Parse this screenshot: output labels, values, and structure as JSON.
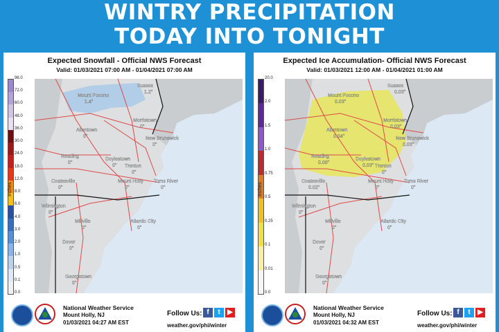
{
  "banner": {
    "line1": "WINTRY PRECIPITATION",
    "line2": "TODAY INTO TONIGHT"
  },
  "panels": [
    {
      "title": "Expected Snowfall - Official NWS Forecast",
      "valid": "Valid: 01/03/2021 07:00 AM - 01/04/2021 07:00 AM",
      "legend_unit": "Inches",
      "legend_ticks": [
        "96.0",
        "72.0",
        "60.0",
        "48.0",
        "36.0",
        "30.0",
        "24.0",
        "18.0",
        "12.0",
        "8.0",
        "6.0",
        "4.0",
        "3.0",
        "2.0",
        "1.0",
        "0.5",
        "0.1",
        "0.0"
      ],
      "legend_colors": [
        "#9a88c8",
        "#b3a3d6",
        "#cfc3e6",
        "#e8e0f2",
        "#6b1010",
        "#9a1818",
        "#c02020",
        "#e03a1a",
        "#f08a1a",
        "#f0c020",
        "#2a4fa0",
        "#3a6dc0",
        "#5a8fd8",
        "#8ab4e6",
        "#b8d3f0",
        "#dde9f7",
        "#f0f0f0"
      ],
      "places": [
        {
          "name": "Mount Pocono",
          "value": "1.4\""
        },
        {
          "name": "Sussex",
          "value": "1.2\""
        },
        {
          "name": "Morristown",
          "value": "0\""
        },
        {
          "name": "Allentown",
          "value": "0\""
        },
        {
          "name": "New Brunswick",
          "value": "0\""
        },
        {
          "name": "Reading",
          "value": "0\""
        },
        {
          "name": "Doylestown",
          "value": "0\""
        },
        {
          "name": "Trenton",
          "value": "0\""
        },
        {
          "name": "Coatesville",
          "value": "0\""
        },
        {
          "name": "Mount Holly",
          "value": "0\""
        },
        {
          "name": "Toms River",
          "value": "0\""
        },
        {
          "name": "Wilmington",
          "value": "0\""
        },
        {
          "name": "Millville",
          "value": "0\""
        },
        {
          "name": "Atlantic City",
          "value": "0\""
        },
        {
          "name": "Dover",
          "value": "0\""
        },
        {
          "name": "Georgetown",
          "value": "0\""
        }
      ],
      "footer": {
        "org": "National Weather Service",
        "office": "Mount Holly, NJ",
        "issued": "01/03/2021 04:27 AM EST",
        "follow": "Follow Us:",
        "url": "weather.gov/phi/winter"
      }
    },
    {
      "title": "Expected Ice Accumulation- Official NWS Forecast",
      "valid": "Valid: 01/03/2021 12:00 AM - 01/04/2021 01:00 AM",
      "legend_unit": "Inches",
      "legend_ticks": [
        "20.0",
        "2.0",
        "1.5",
        "1.0",
        "0.75",
        "0.5",
        "0.25",
        "0.1",
        "0.01",
        "0.0"
      ],
      "legend_colors": [
        "#3a1a6a",
        "#5a2a9a",
        "#8a5ac8",
        "#c02a2a",
        "#e07a1a",
        "#f0c020",
        "#f0e040",
        "#f7f0a0",
        "#f5f5f5"
      ],
      "places": [
        {
          "name": "Mount Pocono",
          "value": "0.03\""
        },
        {
          "name": "Sussex",
          "value": "0.03\""
        },
        {
          "name": "Morristown",
          "value": "0.03\""
        },
        {
          "name": "Allentown",
          "value": "0.04\""
        },
        {
          "name": "New Brunswick",
          "value": "0.03\""
        },
        {
          "name": "Reading",
          "value": "0.08\""
        },
        {
          "name": "Doylestown",
          "value": "0.03\""
        },
        {
          "name": "Trenton",
          "value": "0\""
        },
        {
          "name": "Coatesville",
          "value": "0.02\""
        },
        {
          "name": "Mount Holly",
          "value": "0\""
        },
        {
          "name": "Toms River",
          "value": "0\""
        },
        {
          "name": "Wilmington",
          "value": "0\""
        },
        {
          "name": "Millville",
          "value": "0\""
        },
        {
          "name": "Atlantic City",
          "value": "0\""
        },
        {
          "name": "Dover",
          "value": "0\""
        },
        {
          "name": "Georgetown",
          "value": "0\""
        }
      ],
      "footer": {
        "org": "National Weather Service",
        "office": "Mount Holly, NJ",
        "issued": "01/03/2021 04:32 AM EST",
        "follow": "Follow Us:",
        "url": "weather.gov/phi/winter"
      }
    }
  ],
  "map_colors": {
    "water": "#dce9f5",
    "land_out": "#c9cdd0",
    "land_in": "#dedfe0",
    "road": "#e04848",
    "border": "#111111",
    "snow_shade": "#9ec4ea",
    "ice_shade": "#e6e65a"
  }
}
